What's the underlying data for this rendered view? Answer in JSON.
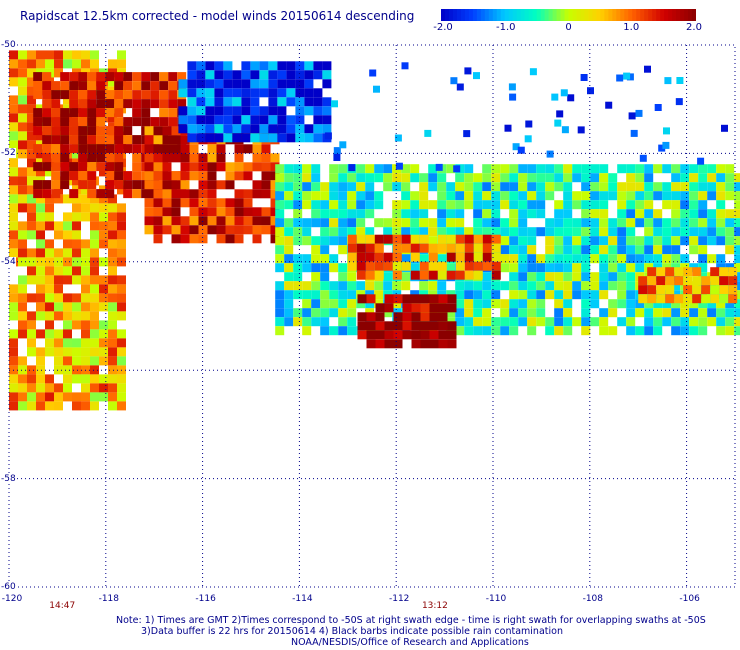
{
  "title": "Rapidscat 12.5km corrected - model winds 20150614 descending",
  "colorbar": {
    "tick_labels": [
      "-2.0",
      "-1.0",
      "0",
      "1.0",
      "2.0"
    ],
    "tick_values": [
      -2.0,
      -1.0,
      0,
      1.0,
      2.0
    ],
    "min": -2.0,
    "max": 2.0,
    "colors": [
      "#0000c8",
      "#0040ff",
      "#00c8ff",
      "#00ffc0",
      "#c8ff00",
      "#ffd000",
      "#ff6000",
      "#d00000",
      "#8b0000"
    ]
  },
  "chart_data": {
    "type": "heatmap",
    "title": "Rapidscat 12.5km corrected - model winds 20150614 descending",
    "xlim": [
      -120,
      -105
    ],
    "ylim": [
      -60,
      -50
    ],
    "x_tick_labels": [
      "-120",
      "-118",
      "-116",
      "-114",
      "-112",
      "-110",
      "-108",
      "-106"
    ],
    "y_tick_labels": [
      "-50",
      "-52",
      "-54",
      "-58",
      "-60"
    ],
    "grid": true,
    "pass_times": [
      {
        "label": "14:47",
        "lon": -118.9
      },
      {
        "label": "13:12",
        "lon": -111.2
      }
    ],
    "swath_regions": [
      {
        "lon": [
          -120,
          -117.7
        ],
        "lat": [
          -50.1,
          -56.7
        ],
        "mean_difference": 0.6
      },
      {
        "lon": [
          -119.5,
          -116.5
        ],
        "lat": [
          -50.5,
          -52.8
        ],
        "mean_difference": 1.6
      },
      {
        "lon": [
          -117.2,
          -114.5
        ],
        "lat": [
          -51.5,
          -53.5
        ],
        "mean_difference": 1.4
      },
      {
        "lon": [
          -116.5,
          -113.5
        ],
        "lat": [
          -50.3,
          -51.7
        ],
        "mean_difference": -1.6
      },
      {
        "lon": [
          -114.5,
          -105
        ],
        "lat": [
          -52.2,
          -55.2
        ],
        "mean_difference": -0.5
      },
      {
        "lon": [
          -112.8,
          -110.8
        ],
        "lat": [
          -54.6,
          -55.5
        ],
        "mean_difference": 2.0
      },
      {
        "lon": [
          -113,
          -110
        ],
        "lat": [
          -53.5,
          -54.3
        ],
        "mean_difference": 1.0
      },
      {
        "lon": [
          -107,
          -105
        ],
        "lat": [
          -54.1,
          -54.7
        ],
        "mean_difference": 0.7
      }
    ]
  },
  "notes": [
    "Note: 1) Times are GMT 2)Times correspond to -50S at right swath edge - time is right swath for overlapping swaths at -50S",
    "3)Data buffer is 22 hrs for 20150614 4) Black barbs indicate possible rain contamination",
    "NOAA/NESDIS/Office of Research and Applications"
  ]
}
